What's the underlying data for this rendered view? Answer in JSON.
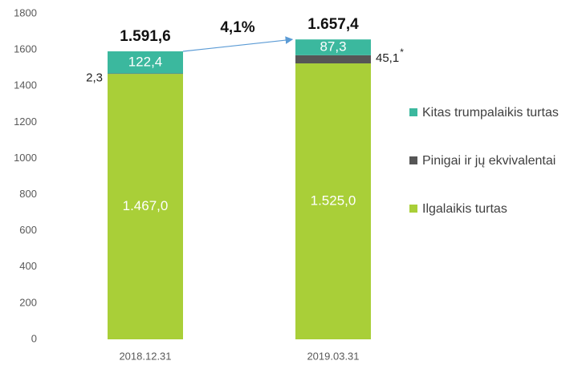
{
  "chart_data": {
    "type": "stacked_bar",
    "categories": [
      "2018.12.31",
      "2019.03.31"
    ],
    "series": [
      {
        "name": "Ilgalaikis turtas",
        "color": "#a9cf38",
        "values": [
          1467.0,
          1525.0
        ],
        "value_labels": [
          "1.467,0",
          "1.525,0"
        ]
      },
      {
        "name": "Pinigai ir jų ekvivalentai",
        "color": "#565656",
        "values": [
          2.3,
          45.1
        ],
        "value_labels": [
          "2,3",
          "45,1"
        ]
      },
      {
        "name": "Kitas trumpalaikis turtas",
        "color": "#3bb89e",
        "values": [
          122.4,
          87.3
        ],
        "value_labels": [
          "122,4",
          "87,3"
        ]
      }
    ],
    "totals": [
      1591.6,
      1657.4
    ],
    "total_labels": [
      "1.591,6",
      "1.657,4"
    ],
    "growth": {
      "value": 4.1,
      "label": "4,1%"
    },
    "footnote_mark": "*",
    "ylim": [
      0,
      1800
    ],
    "yticks": [
      0,
      200,
      400,
      600,
      800,
      1000,
      1200,
      1400,
      1600,
      1800
    ],
    "grid": false,
    "legend": "right"
  }
}
